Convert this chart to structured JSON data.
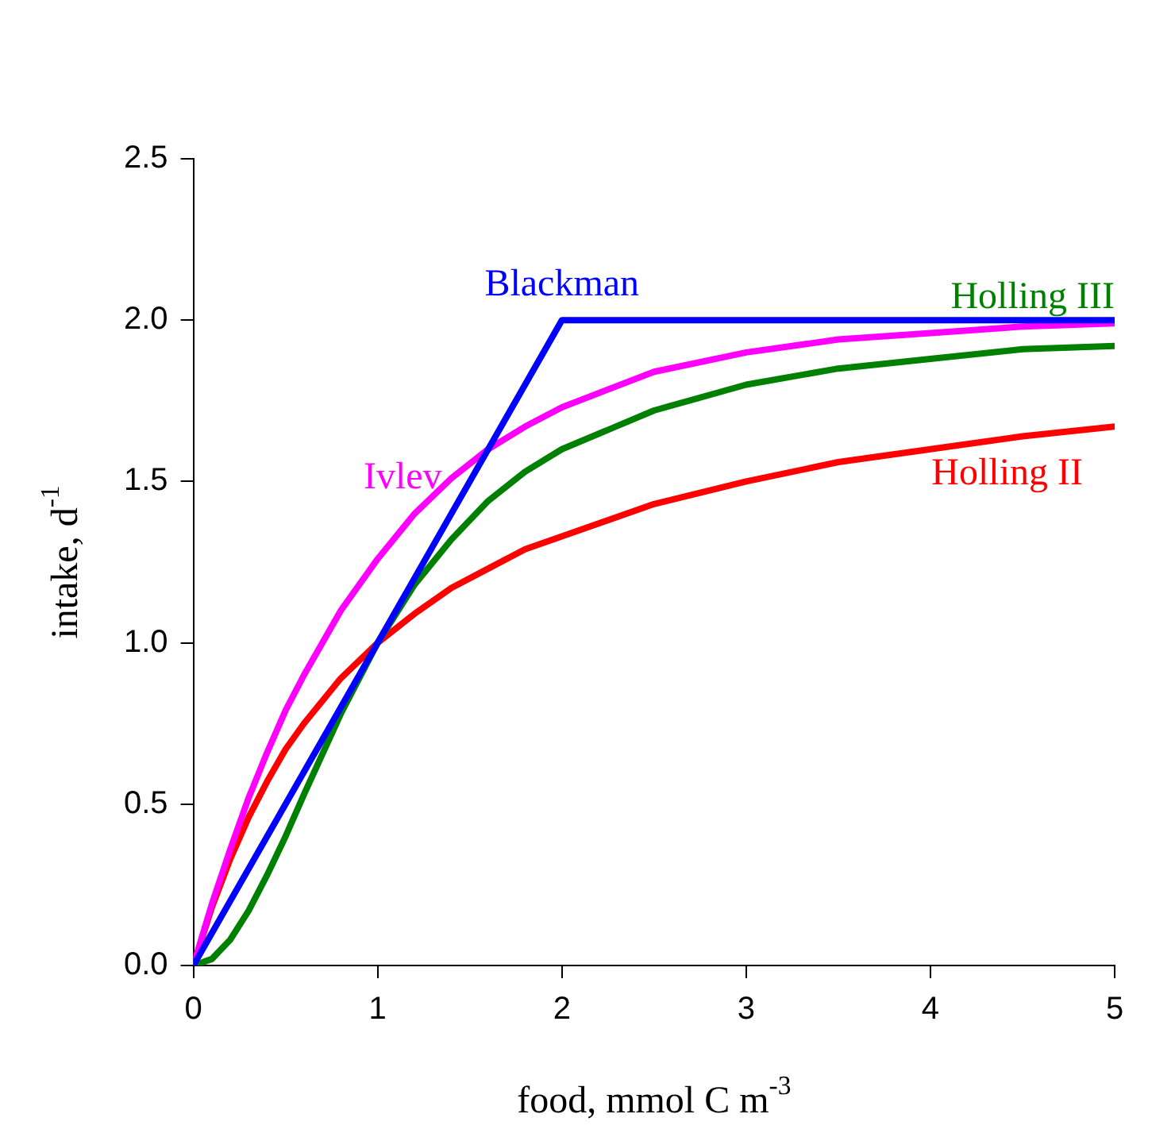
{
  "chart_data": {
    "type": "line",
    "xlabel": "food, mmol C m$^{-3}$",
    "ylabel": "intake, d$^{-1}$",
    "xlim": [
      0,
      5
    ],
    "xticks": [
      0,
      1,
      2,
      3,
      4,
      5
    ],
    "ylim": [
      0,
      2.5
    ],
    "yticks": [
      {
        "value": 0,
        "label": "0.0"
      },
      {
        "value": 0.5,
        "label": "0.5"
      },
      {
        "value": 1,
        "label": "1.0"
      },
      {
        "value": 1.5,
        "label": "1.5"
      },
      {
        "value": 2,
        "label": "2.0"
      },
      {
        "value": 2.5,
        "label": "2.5"
      }
    ],
    "grid": false,
    "legend": false,
    "marker": "none",
    "line_style": "solid",
    "series": [
      {
        "name": "Blackman",
        "color": "#0000ff",
        "x": [
          0,
          2,
          5
        ],
        "values": [
          0,
          2,
          2
        ]
      },
      {
        "name": "Ivlev",
        "color": "#ff00ff",
        "x": [
          0,
          0.1,
          0.2,
          0.3,
          0.4,
          0.5,
          0.6,
          0.8,
          1,
          1.2,
          1.4,
          1.6,
          1.8,
          2,
          2.5,
          3,
          3.5,
          4,
          4.5,
          5
        ],
        "values": [
          0,
          0.19,
          0.36,
          0.52,
          0.66,
          0.79,
          0.9,
          1.1,
          1.26,
          1.4,
          1.51,
          1.6,
          1.67,
          1.73,
          1.84,
          1.9,
          1.94,
          1.96,
          1.98,
          1.99
        ]
      },
      {
        "name": "Holling III",
        "color": "#008000",
        "x": [
          0,
          0.1,
          0.2,
          0.3,
          0.4,
          0.5,
          0.6,
          0.8,
          1,
          1.2,
          1.4,
          1.6,
          1.8,
          2,
          2.5,
          3,
          3.5,
          4,
          4.5,
          5
        ],
        "values": [
          0,
          0.02,
          0.08,
          0.17,
          0.28,
          0.4,
          0.53,
          0.78,
          1,
          1.18,
          1.32,
          1.44,
          1.53,
          1.6,
          1.72,
          1.8,
          1.85,
          1.88,
          1.91,
          1.92
        ]
      },
      {
        "name": "Holling II",
        "color": "#ff0000",
        "x": [
          0,
          0.1,
          0.2,
          0.3,
          0.4,
          0.5,
          0.6,
          0.8,
          1,
          1.2,
          1.4,
          1.6,
          1.8,
          2,
          2.5,
          3,
          3.5,
          4,
          4.5,
          5
        ],
        "values": [
          0,
          0.18,
          0.33,
          0.46,
          0.57,
          0.67,
          0.75,
          0.89,
          1,
          1.09,
          1.17,
          1.23,
          1.29,
          1.33,
          1.43,
          1.5,
          1.56,
          1.6,
          1.64,
          1.67
        ]
      }
    ]
  }
}
